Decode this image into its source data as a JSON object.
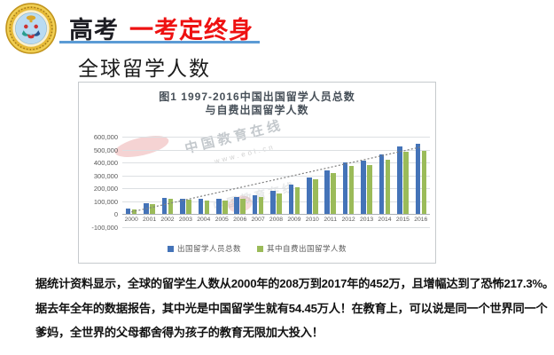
{
  "header": {
    "brand": "高考",
    "slogan": "一考定终身"
  },
  "page_title": "全球留学人数",
  "chart_data": {
    "type": "bar",
    "title_lines": [
      "图1 1997-2016中国出国留学人员总数",
      "与自费出国留学人数"
    ],
    "categories": [
      "2000",
      "2001",
      "2002",
      "2003",
      "2004",
      "2005",
      "2006",
      "2007",
      "2008",
      "2009",
      "2010",
      "2011",
      "2012",
      "2013",
      "2014",
      "2015",
      "2016"
    ],
    "series": [
      {
        "name": "出国留学人员总数",
        "color": "#4473b8",
        "values": [
          39000,
          84000,
          125000,
          117300,
          114700,
          118500,
          134000,
          144000,
          179800,
          229300,
          284700,
          339700,
          399600,
          413900,
          459800,
          523700,
          544500
        ]
      },
      {
        "name": "其中自费出国留学人数",
        "color": "#9bbb59",
        "values": [
          32300,
          76000,
          117300,
          109200,
          104900,
          106500,
          121000,
          129000,
          161600,
          210100,
          266100,
          314800,
          374500,
          380000,
          423000,
          481800,
          491400
        ]
      }
    ],
    "y_ticks": [
      "600,000",
      "500,000",
      "400,000",
      "300,000",
      "200,000",
      "100,000",
      "0",
      "-100,000"
    ],
    "ylim": [
      -100000,
      600000
    ],
    "grid": true,
    "legend_position": "bottom",
    "trendline": {
      "start": 15000,
      "end": 520000,
      "style": "dotted",
      "color": "#7f7f7f"
    }
  },
  "watermark": {
    "text": "中国教育在线",
    "url": "www.eol.cn"
  },
  "body": {
    "lines": [
      "据统计资料显示，全球的留学生人数从2000年的208万到2017年的452万，且增幅达到了恐怖217.3%。",
      "据去年全年的数据报告，其中光是中国留学生就有54.45万人！在教育上，可以说是同一个世界同一个",
      "爹妈，全世界的父母都舍得为孩子的教育无限加大投入！"
    ]
  }
}
